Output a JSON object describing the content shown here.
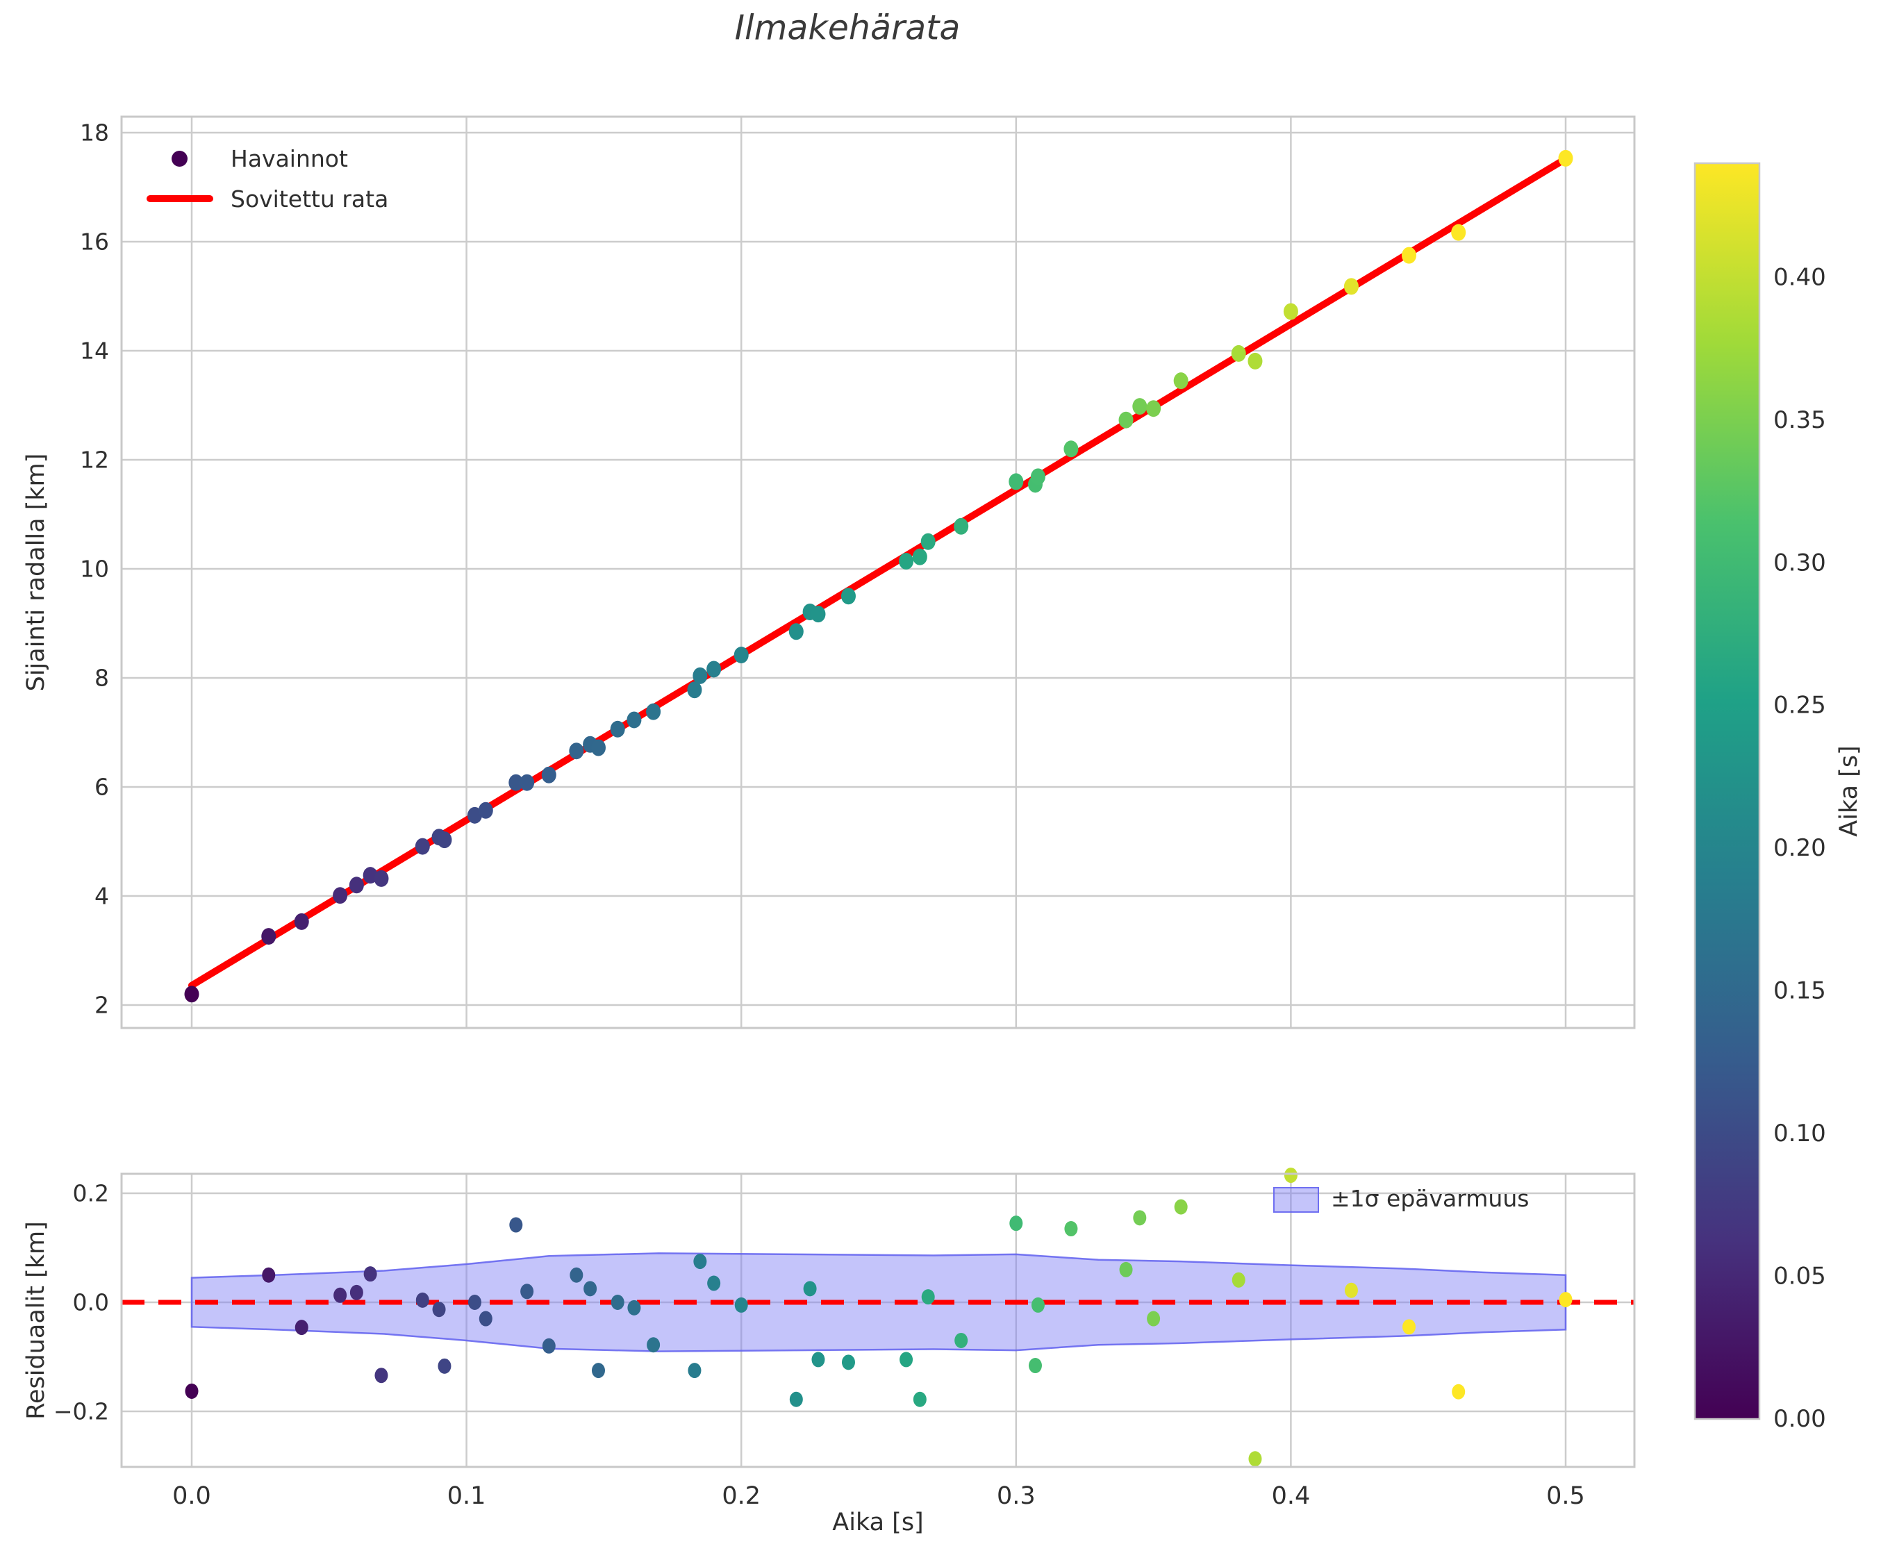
{
  "title": "Ilmakehärata",
  "top_panel": {
    "ylabel": "Sijainti radalla [km]",
    "legend": {
      "observations": "Havainnot",
      "fit": "Sovitettu rata"
    },
    "y_tick_values": [
      2,
      4,
      6,
      8,
      10,
      12,
      14,
      16,
      18
    ],
    "y_tick_labels": [
      "2",
      "4",
      "6",
      "8",
      "10",
      "12",
      "14",
      "16",
      "18"
    ],
    "grid": true
  },
  "residual_panel": {
    "ylabel": "Residuaalit [km]",
    "xlabel": "Aika [s]",
    "legend": "±1σ epävarmuus",
    "x_tick_values": [
      0.0,
      0.1,
      0.2,
      0.3,
      0.4,
      0.5
    ],
    "x_tick_labels": [
      "0.0",
      "0.1",
      "0.2",
      "0.3",
      "0.4",
      "0.5"
    ],
    "y_tick_values": [
      -0.2,
      0.0,
      0.2
    ],
    "y_tick_labels": [
      "−0.2",
      "0.0",
      "0.2"
    ],
    "grid": true
  },
  "colorbar": {
    "label": "Aika [s]",
    "vmin": 0.0,
    "vmax": 0.44,
    "tick_values": [
      0.0,
      0.05,
      0.1,
      0.15,
      0.2,
      0.25,
      0.3,
      0.35,
      0.4
    ],
    "tick_labels": [
      "0.00",
      "0.05",
      "0.10",
      "0.15",
      "0.20",
      "0.25",
      "0.30",
      "0.35",
      "0.40"
    ],
    "colormap": "viridis"
  },
  "colors": {
    "fit_line": "#ff0000",
    "zero_line": "#ff0000",
    "band_fill": "rgba(125,125,245,0.45)",
    "band_edge": "rgba(96,96,238,0.85)",
    "grid": "#cccccc",
    "spine": "#c8c8c8",
    "text": "#2f2f2f",
    "viridis_anchors": [
      "#440154",
      "#46327e",
      "#365c8d",
      "#277f8e",
      "#1fa187",
      "#4ac16d",
      "#a0da39",
      "#fde725"
    ]
  },
  "chart_data": [
    {
      "type": "scatter",
      "title": "Ilmakehärata",
      "xlabel": "Aika [s]",
      "ylabel": "Sijainti radalla [km]",
      "xlim": [
        -0.025,
        0.525
      ],
      "ylim": [
        1.5,
        18.3
      ],
      "grid": true,
      "legend_position": "upper left",
      "color_by": "x",
      "colormap": "viridis",
      "color_range": [
        0.0,
        0.44
      ],
      "series": [
        {
          "name": "Havainnot",
          "kind": "points",
          "points": [
            [
              0.0,
              2.2
            ],
            [
              0.028,
              3.26
            ],
            [
              0.04,
              3.53
            ],
            [
              0.054,
              4.01
            ],
            [
              0.06,
              4.2
            ],
            [
              0.065,
              4.38
            ],
            [
              0.069,
              4.32
            ],
            [
              0.084,
              4.91
            ],
            [
              0.09,
              5.08
            ],
            [
              0.092,
              5.03
            ],
            [
              0.103,
              5.48
            ],
            [
              0.107,
              5.57
            ],
            [
              0.118,
              6.08
            ],
            [
              0.122,
              6.08
            ],
            [
              0.13,
              6.22
            ],
            [
              0.14,
              6.66
            ],
            [
              0.145,
              6.78
            ],
            [
              0.148,
              6.72
            ],
            [
              0.155,
              7.06
            ],
            [
              0.161,
              7.23
            ],
            [
              0.168,
              7.38
            ],
            [
              0.183,
              7.78
            ],
            [
              0.185,
              8.04
            ],
            [
              0.19,
              8.16
            ],
            [
              0.2,
              8.42
            ],
            [
              0.22,
              8.85
            ],
            [
              0.225,
              9.21
            ],
            [
              0.228,
              9.17
            ],
            [
              0.239,
              9.5
            ],
            [
              0.26,
              10.14
            ],
            [
              0.265,
              10.22
            ],
            [
              0.268,
              10.5
            ],
            [
              0.28,
              10.78
            ],
            [
              0.3,
              11.6
            ],
            [
              0.307,
              11.55
            ],
            [
              0.308,
              11.69
            ],
            [
              0.32,
              12.2
            ],
            [
              0.34,
              12.73
            ],
            [
              0.345,
              12.98
            ],
            [
              0.35,
              12.94
            ],
            [
              0.36,
              13.45
            ],
            [
              0.381,
              13.95
            ],
            [
              0.387,
              13.81
            ],
            [
              0.4,
              14.72
            ],
            [
              0.422,
              15.18
            ],
            [
              0.443,
              15.75
            ],
            [
              0.461,
              16.17
            ],
            [
              0.5,
              17.53
            ]
          ]
        },
        {
          "name": "Sovitettu rata",
          "kind": "line",
          "x": [
            0.0,
            0.5
          ],
          "y": [
            2.36,
            17.52
          ],
          "slope_km_per_s": 30.32,
          "intercept_km": 2.36
        }
      ]
    },
    {
      "type": "scatter",
      "xlabel": "Aika [s]",
      "ylabel": "Residuaalit [km]",
      "xlim": [
        -0.025,
        0.525
      ],
      "ylim": [
        -0.3,
        0.235
      ],
      "grid": true,
      "zero_line": 0.0,
      "band": {
        "label": "±1σ epävarmuus",
        "t": [
          0.0,
          0.03,
          0.07,
          0.1,
          0.13,
          0.17,
          0.22,
          0.27,
          0.3,
          0.33,
          0.36,
          0.4,
          0.44,
          0.47,
          0.5
        ],
        "halfwidth": [
          0.045,
          0.05,
          0.058,
          0.07,
          0.085,
          0.09,
          0.088,
          0.086,
          0.088,
          0.078,
          0.075,
          0.068,
          0.062,
          0.055,
          0.05
        ]
      },
      "points": [
        [
          0.0,
          -0.163
        ],
        [
          0.028,
          0.05
        ],
        [
          0.04,
          -0.046
        ],
        [
          0.054,
          0.013
        ],
        [
          0.06,
          0.018
        ],
        [
          0.065,
          0.052
        ],
        [
          0.069,
          -0.134
        ],
        [
          0.084,
          0.004
        ],
        [
          0.09,
          -0.013
        ],
        [
          0.092,
          -0.117
        ],
        [
          0.103,
          0.0
        ],
        [
          0.107,
          -0.03
        ],
        [
          0.118,
          0.142
        ],
        [
          0.122,
          0.02
        ],
        [
          0.13,
          -0.08
        ],
        [
          0.14,
          0.05
        ],
        [
          0.145,
          0.025
        ],
        [
          0.148,
          -0.125
        ],
        [
          0.155,
          0.0
        ],
        [
          0.161,
          -0.01
        ],
        [
          0.168,
          -0.078
        ],
        [
          0.183,
          -0.125
        ],
        [
          0.185,
          0.075
        ],
        [
          0.19,
          0.035
        ],
        [
          0.2,
          -0.005
        ],
        [
          0.22,
          -0.178
        ],
        [
          0.225,
          0.025
        ],
        [
          0.228,
          -0.105
        ],
        [
          0.239,
          -0.11
        ],
        [
          0.26,
          -0.105
        ],
        [
          0.265,
          -0.178
        ],
        [
          0.268,
          0.01
        ],
        [
          0.28,
          -0.07
        ],
        [
          0.3,
          0.145
        ],
        [
          0.307,
          -0.116
        ],
        [
          0.308,
          -0.005
        ],
        [
          0.32,
          0.135
        ],
        [
          0.34,
          0.06
        ],
        [
          0.345,
          0.155
        ],
        [
          0.35,
          -0.03
        ],
        [
          0.36,
          0.175
        ],
        [
          0.381,
          0.041
        ],
        [
          0.387,
          -0.287
        ],
        [
          0.4,
          0.233
        ],
        [
          0.422,
          0.022
        ],
        [
          0.443,
          -0.045
        ],
        [
          0.461,
          -0.164
        ],
        [
          0.5,
          0.005
        ]
      ]
    }
  ]
}
